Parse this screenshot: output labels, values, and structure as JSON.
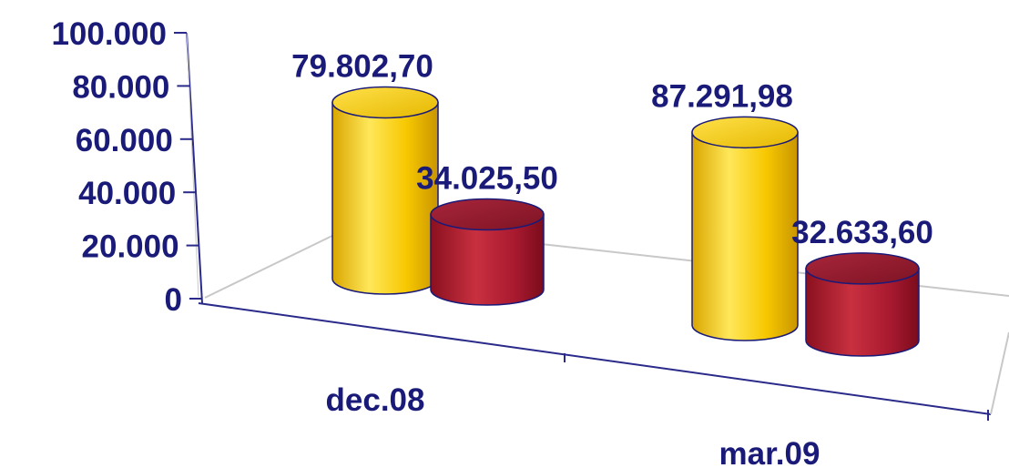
{
  "chart_data": {
    "type": "bar",
    "style": "3d-cylinder",
    "categories": [
      "dec.08",
      "mar.09"
    ],
    "series": [
      {
        "values": [
          79802.7,
          87291.98
        ],
        "labels": [
          "79.802,70",
          "87.291,98"
        ],
        "color": "#f5c400"
      },
      {
        "values": [
          34025.5,
          32633.6
        ],
        "labels": [
          "34.025,50",
          "32.633,60"
        ],
        "color": "#a8192f"
      }
    ],
    "y_ticks": [
      0,
      20000,
      40000,
      60000,
      80000,
      100000
    ],
    "y_tick_labels": [
      "0",
      "20.000",
      "40.000",
      "60.000",
      "80.000",
      "100.000"
    ],
    "ylim": [
      0,
      100000
    ],
    "grid": false,
    "legend": "none",
    "colors": {
      "text": "#1a1a78",
      "axis": "#2a2a8a",
      "floor_line": "#c0c0c0"
    }
  }
}
